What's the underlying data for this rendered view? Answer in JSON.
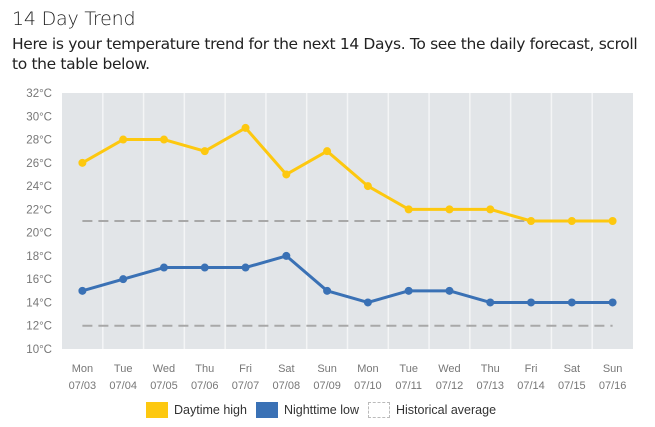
{
  "header": {
    "title": "14 Day Trend",
    "subtitle": "Here is your temperature trend for the next 14 Days. To see the daily forecast, scroll to the table below."
  },
  "colors": {
    "daytime": "#FDC80F",
    "nighttime": "#3A71B5",
    "historical": "#A8A8A8",
    "plot_bg": "#E2E5E8",
    "gridline": "#F4F5F6",
    "tick_text": "#777777"
  },
  "chart_data": {
    "type": "line",
    "title": "14 Day Trend",
    "xlabel": "",
    "ylabel": "",
    "ylim": [
      10,
      32
    ],
    "y_ticks": [
      "10°C",
      "12°C",
      "14°C",
      "16°C",
      "18°C",
      "20°C",
      "22°C",
      "24°C",
      "26°C",
      "28°C",
      "30°C",
      "32°C"
    ],
    "y_tick_values": [
      10,
      12,
      14,
      16,
      18,
      20,
      22,
      24,
      26,
      28,
      30,
      32
    ],
    "categories": [
      {
        "day": "Mon",
        "date": "07/03"
      },
      {
        "day": "Tue",
        "date": "07/04"
      },
      {
        "day": "Wed",
        "date": "07/05"
      },
      {
        "day": "Thu",
        "date": "07/06"
      },
      {
        "day": "Fri",
        "date": "07/07"
      },
      {
        "day": "Sat",
        "date": "07/08"
      },
      {
        "day": "Sun",
        "date": "07/09"
      },
      {
        "day": "Mon",
        "date": "07/10"
      },
      {
        "day": "Tue",
        "date": "07/11"
      },
      {
        "day": "Wed",
        "date": "07/12"
      },
      {
        "day": "Thu",
        "date": "07/13"
      },
      {
        "day": "Fri",
        "date": "07/14"
      },
      {
        "day": "Sat",
        "date": "07/15"
      },
      {
        "day": "Sun",
        "date": "07/16"
      }
    ],
    "series": [
      {
        "name": "Daytime high",
        "key": "daytime",
        "values": [
          26,
          28,
          28,
          27,
          29,
          25,
          27,
          24,
          22,
          22,
          22,
          21,
          21,
          21
        ]
      },
      {
        "name": "Nighttime low",
        "key": "nighttime",
        "values": [
          15,
          16,
          17,
          17,
          17,
          18,
          15,
          14,
          15,
          15,
          14,
          14,
          14,
          14
        ]
      }
    ],
    "reference_lines": [
      {
        "name": "Historical average",
        "key": "historical",
        "values": [
          21,
          12
        ],
        "style": "dashed"
      }
    ],
    "grid": "vertical",
    "legend_position": "bottom-center"
  },
  "legend": [
    {
      "label": "Daytime high",
      "key": "daytime"
    },
    {
      "label": "Nighttime low",
      "key": "nighttime"
    },
    {
      "label": "Historical average",
      "key": "historical"
    }
  ]
}
